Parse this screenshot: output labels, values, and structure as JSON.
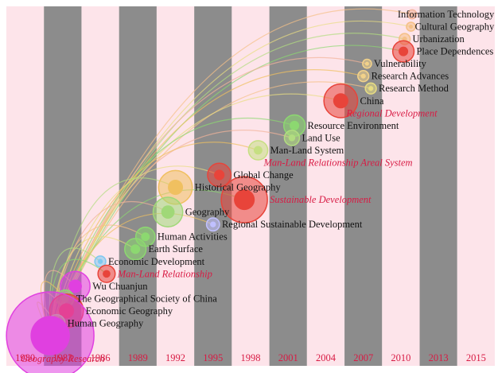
{
  "chart_data": {
    "type": "timeline",
    "colors": {
      "band_light": "#fde4ea",
      "band_dark": "#8c8c8c",
      "year_label": "#d81b44",
      "highlight_label": "#d81b44",
      "node_label": "#111111"
    },
    "years": [
      {
        "label": "1980"
      },
      {
        "label": "1983"
      },
      {
        "label": "1986"
      },
      {
        "label": "1989"
      },
      {
        "label": "1992"
      },
      {
        "label": "1995"
      },
      {
        "label": "1998"
      },
      {
        "label": "2001"
      },
      {
        "label": "2004"
      },
      {
        "label": "2007"
      },
      {
        "label": "2010"
      },
      {
        "label": "2013"
      },
      {
        "label": "2015"
      }
    ],
    "nodes": [
      {
        "label": "Information Technology",
        "year": 2010.9,
        "level": 17,
        "size": 2,
        "color": "#f2b49a",
        "highlight": false
      },
      {
        "label": "Cultural Geography",
        "year": 2010.8,
        "level": 16,
        "size": 2,
        "color": "#f5c087",
        "highlight": false
      },
      {
        "label": "Urbanization",
        "year": 2010.3,
        "level": 15,
        "size": 3,
        "color": "#f5c087",
        "highlight": false
      },
      {
        "label": "Place Dependences",
        "year": 2010.2,
        "level": 14,
        "size": 8,
        "color": "#e8443a",
        "highlight": false
      },
      {
        "label": "Vulnerability",
        "year": 2007.3,
        "level": 13,
        "size": 2,
        "color": "#f2d28a",
        "highlight": false
      },
      {
        "label": "Research Advances",
        "year": 2007.0,
        "level": 12,
        "size": 3,
        "color": "#f2d28a",
        "highlight": false
      },
      {
        "label": "Research Method",
        "year": 2007.6,
        "level": 11,
        "size": 3,
        "color": "#e8dd82",
        "highlight": false
      },
      {
        "label": "China",
        "year": 2005.2,
        "level": 10,
        "size": 14,
        "color": "#e8443a",
        "highlight": false
      },
      {
        "label": "Regional Development",
        "year": 2005.2,
        "level": 9,
        "size": 0,
        "color": "#e8443a",
        "highlight": true
      },
      {
        "label": "Resource Environment",
        "year": 2001.5,
        "level": 8,
        "size": 8,
        "color": "#8cd870",
        "highlight": false
      },
      {
        "label": "Land Use",
        "year": 2001.3,
        "level": 7,
        "size": 5,
        "color": "#b2dd80",
        "highlight": false
      },
      {
        "label": "Man-Land System",
        "year": 1998.6,
        "level": 6,
        "size": 7,
        "color": "#c6df82",
        "highlight": false
      },
      {
        "label": "Man-Land Relationship Areal System",
        "year": 1998.6,
        "level": 5,
        "size": 0,
        "color": "#c6df82",
        "highlight": true
      },
      {
        "label": "Global Change",
        "year": 1995.5,
        "level": 4,
        "size": 9,
        "color": "#e8443a",
        "highlight": false
      },
      {
        "label": "Historical Geography",
        "year": 1992.0,
        "level": 3,
        "size": 14,
        "color": "#f0c060",
        "highlight": false
      },
      {
        "label": "Sustainable Development",
        "year": 1997.5,
        "level": 2,
        "size": 20,
        "color": "#e8443a",
        "highlight": true
      },
      {
        "label": "Geography",
        "year": 1991.4,
        "level": 1,
        "size": 12,
        "color": "#a0d878",
        "highlight": false
      },
      {
        "label": "Regional Sustainable Development",
        "year": 1995.0,
        "level": 0,
        "size": 4,
        "color": "#c0c0ff",
        "highlight": false
      },
      {
        "label": "Human Activities",
        "year": 1989.6,
        "level": -1,
        "size": 7,
        "color": "#8cd870",
        "highlight": false
      },
      {
        "label": "Earth Surface",
        "year": 1988.8,
        "level": -2,
        "size": 8,
        "color": "#8cd870",
        "highlight": false
      },
      {
        "label": "Economic Development",
        "year": 1986.0,
        "level": -3,
        "size": 3,
        "color": "#7ec8f0",
        "highlight": false
      },
      {
        "label": "Man-Land Relationship",
        "year": 1986.5,
        "level": -4,
        "size": 6,
        "color": "#e8443a",
        "highlight": true
      },
      {
        "label": "Wu Chuanjun",
        "year": 1984.0,
        "level": -5,
        "size": 12,
        "color": "#e040e0",
        "highlight": false
      },
      {
        "label": "The Geographical Society of China",
        "year": 1983.2,
        "level": -6,
        "size": 6,
        "color": "#8cd870",
        "highlight": false
      },
      {
        "label": "Economic Geography",
        "year": 1983.3,
        "level": -7,
        "size": 14,
        "color": "#e8443a",
        "highlight": false
      },
      {
        "label": "Human Geography",
        "year": 1982.5,
        "level": -8,
        "size": 6,
        "color": "#b0dd80",
        "highlight": false
      },
      {
        "label": "Geography Research",
        "year": 1982.0,
        "level": -9,
        "size": 40,
        "color": "#e040e0",
        "highlight": true
      }
    ]
  }
}
